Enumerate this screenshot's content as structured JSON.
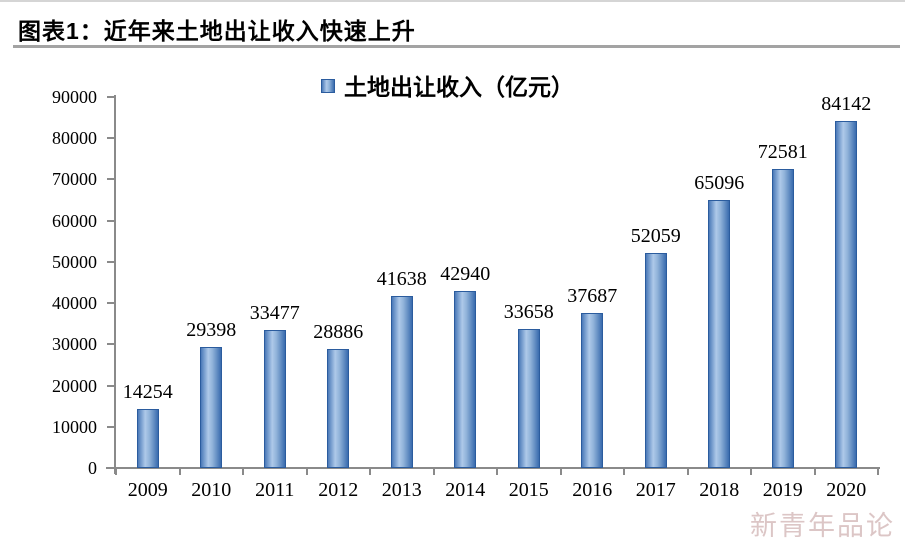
{
  "header": {
    "title": "图表1：近年来土地出让收入快速上升"
  },
  "legend": {
    "label": "土地出让收入（亿元）"
  },
  "watermark": {
    "text": "新青年品论"
  },
  "colors": {
    "bar_border": "#2b5c9e",
    "bar_dark": "#3a6cae",
    "bar_light": "#aec9e9",
    "bar_edge": "#4a79b8",
    "axis": "#8a8a8a",
    "title_rule": "#a3a3a3",
    "watermark": "#dcc6c6"
  },
  "chart_data": {
    "type": "bar",
    "title": "近年来土地出让收入快速上升",
    "legend_entries": [
      "土地出让收入（亿元）"
    ],
    "legend_position": "top",
    "categories": [
      "2009",
      "2010",
      "2011",
      "2012",
      "2013",
      "2014",
      "2015",
      "2016",
      "2017",
      "2018",
      "2019",
      "2020"
    ],
    "values": [
      14254,
      29398,
      33477,
      28886,
      41638,
      42940,
      33658,
      37687,
      52059,
      65096,
      72581,
      84142
    ],
    "xlabel": "",
    "ylabel": "",
    "ylim": [
      0,
      90000
    ],
    "ytick_step": 10000,
    "yticks": [
      0,
      10000,
      20000,
      30000,
      40000,
      50000,
      60000,
      70000,
      80000,
      90000
    ],
    "grid": false,
    "data_labels": true
  }
}
